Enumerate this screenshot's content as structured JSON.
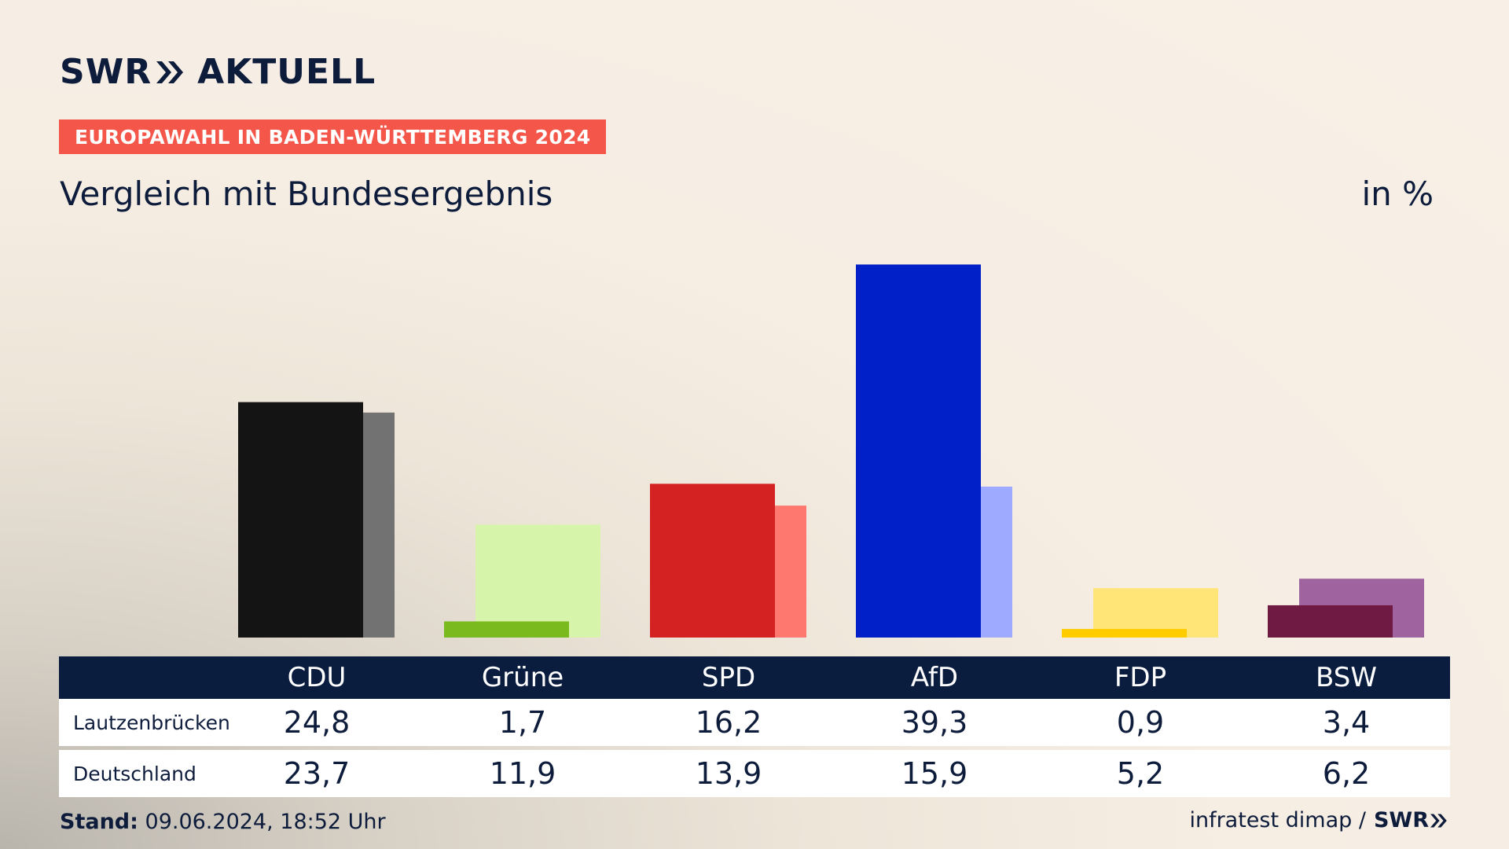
{
  "header": {
    "logo_swr": "SWR",
    "logo_aktuell": "AKTUELL",
    "badge": "EUROPAWAHL IN BADEN-WÜRTTEMBERG 2024",
    "subtitle": "Vergleich mit Bundesergebnis",
    "unit": "in %"
  },
  "chart_data": {
    "type": "bar",
    "categories": [
      "CDU",
      "Grüne",
      "SPD",
      "AfD",
      "FDP",
      "BSW"
    ],
    "series": [
      {
        "name": "Lautzenbrücken",
        "values": [
          24.8,
          1.7,
          16.2,
          39.3,
          0.9,
          3.4
        ],
        "colors": [
          "#141414",
          "#7aba1f",
          "#d42121",
          "#0120c8",
          "#ffcc00",
          "#6e1a42"
        ]
      },
      {
        "name": "Deutschland",
        "values": [
          23.7,
          11.9,
          13.9,
          15.9,
          5.2,
          6.2
        ],
        "colors": [
          "#737272",
          "#d7f5aa",
          "#ff7870",
          "#9eaaff",
          "#ffe477",
          "#9f64a0"
        ]
      }
    ],
    "ylim": [
      0,
      42
    ],
    "legend": "table-below"
  },
  "table": {
    "rows": [
      {
        "label": "Lautzenbrücken",
        "values": [
          "24,8",
          "1,7",
          "16,2",
          "39,3",
          "0,9",
          "3,4"
        ]
      },
      {
        "label": "Deutschland",
        "values": [
          "23,7",
          "11,9",
          "13,9",
          "15,9",
          "5,2",
          "6,2"
        ]
      }
    ]
  },
  "footer": {
    "stand_label": "Stand:",
    "stand_value": "09.06.2024, 18:52 Uhr",
    "source": "infratest dimap /",
    "source_logo": "SWR"
  }
}
